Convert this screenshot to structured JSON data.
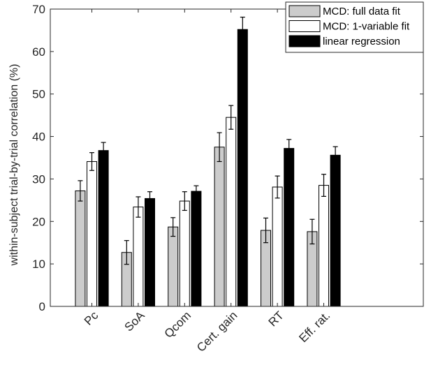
{
  "chart_data": {
    "type": "bar",
    "ylabel": "within-subject trial-by-trial correlation (%)",
    "xlabel": "",
    "ylim": [
      0,
      70
    ],
    "yticks": [
      0,
      10,
      20,
      30,
      40,
      50,
      60,
      70
    ],
    "categories": [
      "Pc",
      "SoA",
      "Qcom",
      "Cert. gain",
      "RT",
      "Eff. rat."
    ],
    "grid": false,
    "legend_position": "top-right",
    "series": [
      {
        "name": "MCD: full data fit",
        "color": "#cccccc",
        "values": [
          27.2,
          12.7,
          18.7,
          37.5,
          17.9,
          17.6
        ],
        "errors": [
          2.4,
          2.8,
          2.2,
          3.4,
          2.9,
          2.9
        ]
      },
      {
        "name": "MCD: 1-variable fit",
        "color": "#ffffff",
        "values": [
          34.1,
          23.4,
          24.8,
          44.5,
          28.1,
          28.5
        ],
        "errors": [
          2.1,
          2.4,
          2.2,
          2.8,
          2.6,
          2.6
        ]
      },
      {
        "name": "linear regression",
        "color": "#000000",
        "values": [
          36.7,
          25.4,
          27.1,
          65.2,
          37.2,
          35.6
        ],
        "errors": [
          1.9,
          1.6,
          1.3,
          2.9,
          2.1,
          2.0
        ]
      }
    ]
  }
}
